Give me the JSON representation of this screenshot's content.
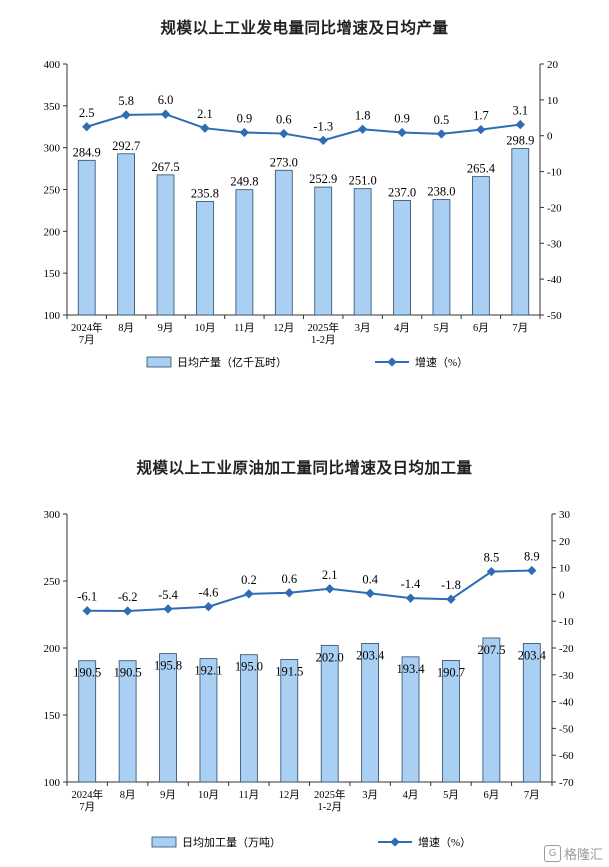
{
  "chart_data": [
    {
      "type": "bar",
      "title": "规模以上工业发电量同比增速及日均产量",
      "categories": [
        [
          "2024年",
          "7月"
        ],
        [
          "8月"
        ],
        [
          "9月"
        ],
        [
          "10月"
        ],
        [
          "11月"
        ],
        [
          "12月"
        ],
        [
          "2025年",
          "1-2月"
        ],
        [
          "3月"
        ],
        [
          "4月"
        ],
        [
          "5月"
        ],
        [
          "6月"
        ],
        [
          "7月"
        ]
      ],
      "series": [
        {
          "name": "日均产量（亿千瓦时）",
          "kind": "bar",
          "axis": "left",
          "values": [
            284.9,
            292.7,
            267.5,
            235.8,
            249.8,
            273.0,
            252.9,
            251.0,
            237.0,
            238.0,
            265.4,
            298.9
          ],
          "labels": [
            "284.9",
            "292.7",
            "267.5",
            "235.8",
            "249.8",
            "273.0",
            "252.9",
            "251.0",
            "237.0",
            "238.0",
            "265.4",
            "298.9"
          ]
        },
        {
          "name": "增速（%）",
          "kind": "line",
          "axis": "right",
          "values": [
            2.5,
            5.8,
            6.0,
            2.1,
            0.9,
            0.6,
            -1.3,
            1.8,
            0.9,
            0.5,
            1.7,
            3.1
          ],
          "labels": [
            "2.5",
            "5.8",
            "6.0",
            "2.1",
            "0.9",
            "0.6",
            "-1.3",
            "1.8",
            "0.9",
            "0.5",
            "1.7",
            "3.1"
          ]
        }
      ],
      "ylim_left": [
        100,
        400
      ],
      "yticks_left": [
        100,
        150,
        200,
        250,
        300,
        350,
        400
      ],
      "ylim_right": [
        -50,
        20
      ],
      "yticks_right": [
        -50,
        -40,
        -30,
        -20,
        -10,
        0,
        10,
        20
      ],
      "legend": [
        "日均产量（亿千瓦时）",
        "增速（%）"
      ],
      "legend_position": "bottom",
      "grid": false
    },
    {
      "type": "bar",
      "title": "规模以上工业原油加工量同比增速及日均加工量",
      "categories": [
        [
          "2024年",
          "7月"
        ],
        [
          "8月"
        ],
        [
          "9月"
        ],
        [
          "10月"
        ],
        [
          "11月"
        ],
        [
          "12月"
        ],
        [
          "2025年",
          "1-2月"
        ],
        [
          "3月"
        ],
        [
          "4月"
        ],
        [
          "5月"
        ],
        [
          "6月"
        ],
        [
          "7月"
        ]
      ],
      "series": [
        {
          "name": "日均加工量（万吨）",
          "kind": "bar",
          "axis": "left",
          "values": [
            190.5,
            190.5,
            195.8,
            192.1,
            195.0,
            191.5,
            202.0,
            203.4,
            193.4,
            190.7,
            207.5,
            203.4
          ],
          "labels": [
            "190.5",
            "190.5",
            "195.8",
            "192.1",
            "195.0",
            "191.5",
            "202.0",
            "203.4",
            "193.4",
            "190.7",
            "207.5",
            "203.4"
          ]
        },
        {
          "name": "增速（%）",
          "kind": "line",
          "axis": "right",
          "values": [
            -6.1,
            -6.2,
            -5.4,
            -4.6,
            0.2,
            0.6,
            2.1,
            0.4,
            -1.4,
            -1.8,
            8.5,
            8.9
          ],
          "labels": [
            "-6.1",
            "-6.2",
            "-5.4",
            "-4.6",
            "0.2",
            "0.6",
            "2.1",
            "0.4",
            "-1.4",
            "-1.8",
            "8.5",
            "8.9"
          ]
        }
      ],
      "ylim_left": [
        100,
        300
      ],
      "yticks_left": [
        100,
        150,
        200,
        250,
        300
      ],
      "ylim_right": [
        -70,
        30
      ],
      "yticks_right": [
        -70,
        -60,
        -50,
        -40,
        -30,
        -20,
        -10,
        0,
        10,
        20,
        30
      ],
      "legend": [
        "日均加工量（万吨）",
        "增速（%）"
      ],
      "legend_position": "bottom",
      "grid": false
    }
  ],
  "watermark": {
    "text": "格隆汇",
    "icon": "G"
  },
  "colors": {
    "bar_fill": "#a9cff2",
    "bar_stroke": "#2b4a6b",
    "line": "#2e6db4",
    "axis": "#333333"
  }
}
